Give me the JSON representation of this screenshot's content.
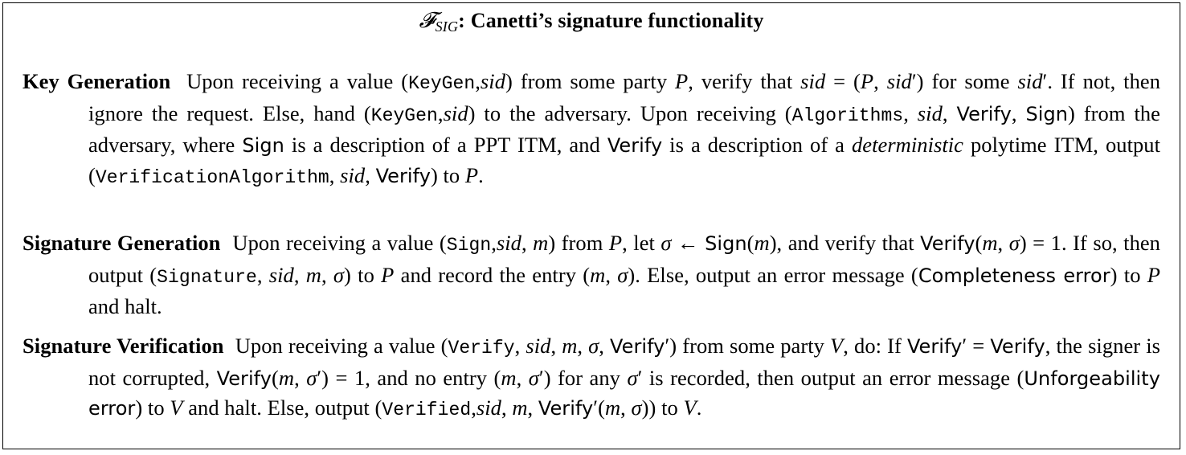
{
  "title": {
    "symbol": "𝓕",
    "subscript": "SIG",
    "text": ": Canetti’s signature functionality"
  },
  "items": [
    {
      "heading": "Key Generation",
      "body_html": "Upon receiving a value (<span class=\"mono\">KeyGen</span>,<span class=\"it\">sid</span>) from some party <span class=\"it\">P</span>, verify that <span class=\"it\">sid</span> = (<span class=\"it\">P</span>, <span class=\"it\">sid</span>′) for some <span class=\"it\">sid</span>′. If not, then ignore the request. Else, hand (<span class=\"mono\">KeyGen</span>,<span class=\"it\">sid</span>) to the adversary. Upon receiving (<span class=\"mono\">Algorithms</span>, <span class=\"it\">sid</span>, <span class=\"sans\">Verify</span>, <span class=\"sans\">Sign</span>) from the adversary, where <span class=\"sans\">Sign</span> is a description of a PPT ITM, and <span class=\"sans\">Verify</span> is a description of a <span class=\"it\">deterministic</span> polytime ITM, output (<span class=\"mono\">VerificationAlgorithm</span>, <span class=\"it\">sid</span>, <span class=\"sans\">Verify</span>) to <span class=\"it\">P</span>."
    },
    {
      "heading": "Signature Generation",
      "body_html": "Upon receiving a value (<span class=\"mono\">Sign</span>,<span class=\"it\">sid</span>, <span class=\"it\">m</span>) from <span class=\"it\">P</span>, let <span class=\"it\">σ</span> ← <span class=\"sans\">Sign</span>(<span class=\"it\">m</span>), and verify that <span class=\"sans\">Verify</span>(<span class=\"it\">m</span>, <span class=\"it\">σ</span>) = 1. If so, then output (<span class=\"mono\">Signature</span>, <span class=\"it\">sid</span>, <span class=\"it\">m</span>, <span class=\"it\">σ</span>) to <span class=\"it\">P</span> and record the entry (<span class=\"it\">m</span>, <span class=\"it\">σ</span>). Else, output an error message (<span class=\"sans\">Completeness error</span>) to <span class=\"it\">P</span> and halt."
    },
    {
      "heading": "Signature Verification",
      "body_html": "Upon receiving a value (<span class=\"mono\">Verify</span>, <span class=\"it\">sid</span>, <span class=\"it\">m</span>, <span class=\"it\">σ</span>, <span class=\"sans\">Verify</span>′) from some party <span class=\"it\">V</span>, do: If <span class=\"sans\">Verify</span>′ = <span class=\"sans\">Verify</span>, the signer is not corrupted, <span class=\"sans\">Verify</span>(<span class=\"it\">m</span>, <span class=\"it\">σ</span>′) = 1, and no entry (<span class=\"it\">m</span>, <span class=\"it\">σ</span>′) for any <span class=\"it\">σ</span>′ is recorded, then output an error message (<span class=\"sans\">Unforgeability error</span>) to <span class=\"it\">V</span> and halt. Else, output (<span class=\"mono\">Verified</span>,<span class=\"it\">sid</span>, <span class=\"it\">m</span>, <span class=\"sans\">Verify</span>′(<span class=\"it\">m</span>, <span class=\"it\">σ</span>)) to <span class=\"it\">V</span>."
    }
  ]
}
